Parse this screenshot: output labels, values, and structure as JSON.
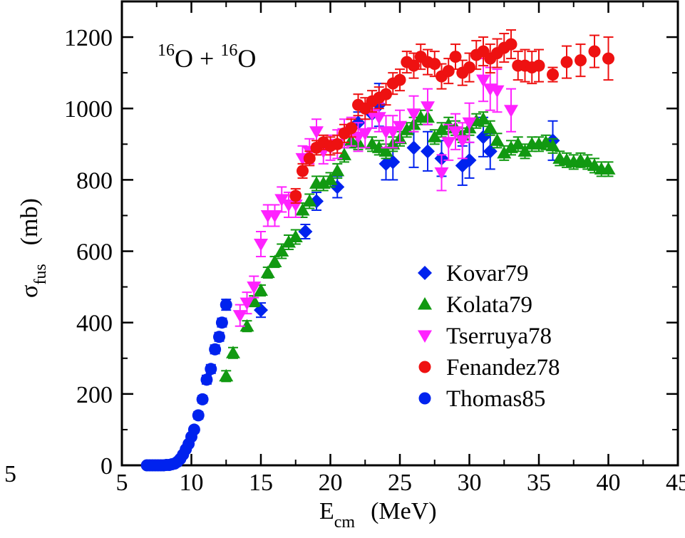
{
  "chart_data": {
    "type": "scatter",
    "title": "",
    "reaction_label": {
      "mass1": "16",
      "el1": "O",
      "plus": " + ",
      "mass2": "16",
      "el2": "O"
    },
    "xlabel": {
      "main": "E",
      "sub": "cm",
      "unit": "(MeV)"
    },
    "ylabel": {
      "main": "σ",
      "sub": "fus",
      "unit": "(mb)"
    },
    "xlim": [
      5,
      45
    ],
    "ylim": [
      0,
      1300
    ],
    "xticks": [
      5,
      10,
      15,
      20,
      25,
      30,
      35,
      40,
      45
    ],
    "yticks": [
      0,
      200,
      400,
      600,
      800,
      1000,
      1200
    ],
    "stray_label": "5",
    "legend_position": "bottom-right",
    "series": [
      {
        "name": "Kovar79",
        "marker": "diamond",
        "color": "#0022ee",
        "points": [
          [
            15.0,
            435,
            20
          ],
          [
            18.2,
            655,
            20
          ],
          [
            19.0,
            740,
            25
          ],
          [
            20.5,
            780,
            30
          ],
          [
            22.0,
            960,
            30
          ],
          [
            23.0,
            985,
            40
          ],
          [
            23.5,
            1010,
            60
          ],
          [
            24.0,
            845,
            45
          ],
          [
            24.5,
            850,
            50
          ],
          [
            26.0,
            890,
            55
          ],
          [
            27.0,
            880,
            55
          ],
          [
            28.0,
            860,
            50
          ],
          [
            29.5,
            840,
            55
          ],
          [
            30.0,
            855,
            50
          ],
          [
            31.0,
            920,
            55
          ],
          [
            31.5,
            880,
            50
          ],
          [
            36.0,
            910,
            55
          ]
        ]
      },
      {
        "name": "Kolata79",
        "marker": "triangle-up",
        "color": "#119911",
        "points": [
          [
            12.5,
            250,
            15
          ],
          [
            13.0,
            315,
            15
          ],
          [
            14.0,
            390,
            15
          ],
          [
            14.5,
            460,
            15
          ],
          [
            15.0,
            490,
            15
          ],
          [
            15.5,
            540,
            15
          ],
          [
            16.0,
            570,
            15
          ],
          [
            16.5,
            600,
            20
          ],
          [
            17.0,
            625,
            20
          ],
          [
            17.5,
            640,
            20
          ],
          [
            18.0,
            715,
            20
          ],
          [
            18.5,
            740,
            20
          ],
          [
            19.0,
            790,
            20
          ],
          [
            19.5,
            790,
            20
          ],
          [
            20.0,
            800,
            20
          ],
          [
            20.5,
            825,
            20
          ],
          [
            21.0,
            870,
            20
          ],
          [
            21.5,
            910,
            20
          ],
          [
            22.0,
            905,
            20
          ],
          [
            23.0,
            900,
            20
          ],
          [
            23.5,
            890,
            20
          ],
          [
            24.0,
            880,
            20
          ],
          [
            24.5,
            900,
            20
          ],
          [
            25.0,
            915,
            20
          ],
          [
            25.5,
            940,
            20
          ],
          [
            26.0,
            955,
            20
          ],
          [
            26.5,
            975,
            20
          ],
          [
            27.0,
            975,
            20
          ],
          [
            27.5,
            920,
            20
          ],
          [
            28.0,
            940,
            20
          ],
          [
            28.5,
            955,
            20
          ],
          [
            29.0,
            945,
            20
          ],
          [
            29.5,
            925,
            20
          ],
          [
            30.0,
            945,
            20
          ],
          [
            30.5,
            965,
            20
          ],
          [
            31.0,
            970,
            20
          ],
          [
            31.5,
            945,
            20
          ],
          [
            32.0,
            910,
            20
          ],
          [
            32.5,
            875,
            20
          ],
          [
            33.0,
            890,
            20
          ],
          [
            33.5,
            900,
            20
          ],
          [
            34.0,
            880,
            20
          ],
          [
            34.5,
            900,
            20
          ],
          [
            35.0,
            900,
            20
          ],
          [
            35.5,
            905,
            20
          ],
          [
            36.0,
            895,
            20
          ],
          [
            36.5,
            860,
            20
          ],
          [
            37.0,
            855,
            20
          ],
          [
            37.5,
            850,
            20
          ],
          [
            38.0,
            855,
            20
          ],
          [
            38.5,
            850,
            20
          ],
          [
            39.0,
            840,
            20
          ],
          [
            39.5,
            830,
            20
          ],
          [
            40.0,
            830,
            20
          ]
        ]
      },
      {
        "name": "Tserruya78",
        "marker": "triangle-down",
        "color": "#ff22ff",
        "points": [
          [
            13.5,
            420,
            30
          ],
          [
            14.0,
            455,
            30
          ],
          [
            14.5,
            500,
            30
          ],
          [
            15.0,
            620,
            35
          ],
          [
            15.5,
            700,
            30
          ],
          [
            16.0,
            700,
            30
          ],
          [
            16.5,
            745,
            35
          ],
          [
            17.0,
            730,
            35
          ],
          [
            17.5,
            730,
            35
          ],
          [
            18.0,
            860,
            35
          ],
          [
            18.5,
            880,
            35
          ],
          [
            19.0,
            935,
            35
          ],
          [
            19.5,
            880,
            35
          ],
          [
            20.0,
            890,
            35
          ],
          [
            20.5,
            900,
            40
          ],
          [
            21.0,
            930,
            40
          ],
          [
            21.5,
            935,
            40
          ],
          [
            22.0,
            920,
            40
          ],
          [
            22.5,
            930,
            40
          ],
          [
            23.0,
            985,
            40
          ],
          [
            23.5,
            975,
            40
          ],
          [
            24.0,
            935,
            45
          ],
          [
            24.5,
            935,
            45
          ],
          [
            25.0,
            950,
            45
          ],
          [
            26.0,
            985,
            50
          ],
          [
            27.0,
            1005,
            50
          ],
          [
            28.0,
            820,
            50
          ],
          [
            28.5,
            905,
            50
          ],
          [
            29.0,
            935,
            50
          ],
          [
            29.5,
            910,
            50
          ],
          [
            30.0,
            960,
            55
          ],
          [
            31.0,
            1080,
            60
          ],
          [
            31.5,
            1055,
            60
          ],
          [
            32.0,
            1050,
            60
          ],
          [
            33.0,
            995,
            60
          ]
        ]
      },
      {
        "name": "Fenandez78",
        "marker": "circle",
        "color": "#ee1111",
        "points": [
          [
            17.5,
            755,
            20
          ],
          [
            18.0,
            825,
            20
          ],
          [
            18.5,
            860,
            20
          ],
          [
            19.0,
            890,
            20
          ],
          [
            19.5,
            905,
            20
          ],
          [
            20.0,
            895,
            25
          ],
          [
            20.5,
            900,
            25
          ],
          [
            21.0,
            930,
            25
          ],
          [
            21.5,
            945,
            25
          ],
          [
            22.0,
            1010,
            30
          ],
          [
            22.5,
            1000,
            30
          ],
          [
            23.0,
            1020,
            30
          ],
          [
            23.5,
            1030,
            30
          ],
          [
            24.0,
            1040,
            30
          ],
          [
            24.5,
            1070,
            30
          ],
          [
            25.0,
            1080,
            30
          ],
          [
            25.5,
            1130,
            30
          ],
          [
            26.0,
            1120,
            35
          ],
          [
            26.5,
            1145,
            35
          ],
          [
            27.0,
            1130,
            35
          ],
          [
            27.5,
            1125,
            35
          ],
          [
            28.0,
            1090,
            35
          ],
          [
            28.5,
            1105,
            35
          ],
          [
            29.0,
            1145,
            35
          ],
          [
            29.5,
            1100,
            35
          ],
          [
            30.0,
            1115,
            40
          ],
          [
            30.5,
            1150,
            40
          ],
          [
            31.0,
            1160,
            40
          ],
          [
            31.5,
            1140,
            40
          ],
          [
            32.0,
            1155,
            40
          ],
          [
            32.5,
            1170,
            40
          ],
          [
            33.0,
            1180,
            40
          ],
          [
            33.5,
            1120,
            40
          ],
          [
            34.0,
            1120,
            45
          ],
          [
            34.5,
            1115,
            45
          ],
          [
            35.0,
            1120,
            45
          ],
          [
            36.0,
            1095,
            20
          ],
          [
            37.0,
            1130,
            45
          ],
          [
            38.0,
            1135,
            45
          ],
          [
            39.0,
            1160,
            45
          ],
          [
            40.0,
            1140,
            60
          ]
        ]
      },
      {
        "name": "Thomas85",
        "marker": "circle",
        "color": "#0022ee",
        "points": [
          [
            6.8,
            0,
            0
          ],
          [
            7.0,
            0,
            0
          ],
          [
            7.2,
            0,
            0
          ],
          [
            7.4,
            0,
            0
          ],
          [
            7.6,
            0,
            0
          ],
          [
            7.8,
            0,
            0
          ],
          [
            8.0,
            0,
            0
          ],
          [
            8.2,
            1,
            0
          ],
          [
            8.4,
            1,
            0
          ],
          [
            8.6,
            3,
            0
          ],
          [
            8.8,
            5,
            0
          ],
          [
            9.0,
            10,
            2
          ],
          [
            9.2,
            18,
            3
          ],
          [
            9.4,
            30,
            4
          ],
          [
            9.6,
            45,
            5
          ],
          [
            9.8,
            60,
            6
          ],
          [
            10.0,
            80,
            7
          ],
          [
            10.2,
            100,
            8
          ],
          [
            10.5,
            140,
            10
          ],
          [
            10.8,
            185,
            10
          ],
          [
            11.1,
            240,
            12
          ],
          [
            11.4,
            270,
            12
          ],
          [
            11.7,
            325,
            12
          ],
          [
            12.0,
            360,
            12
          ],
          [
            12.2,
            400,
            12
          ],
          [
            12.5,
            450,
            15
          ]
        ]
      }
    ]
  }
}
